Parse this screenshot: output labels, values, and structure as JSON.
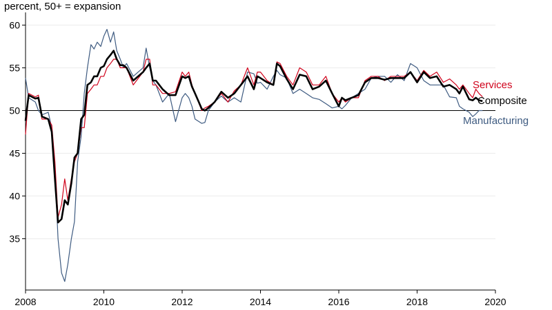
{
  "chart_data": {
    "type": "line",
    "ylabel": "percent, 50+ = expansion",
    "xlim": [
      2008,
      2020
    ],
    "ylim": [
      29,
      61
    ],
    "x_ticks": [
      2008,
      2010,
      2012,
      2014,
      2016,
      2018,
      2020
    ],
    "y_ticks": [
      35,
      40,
      45,
      50,
      55,
      60
    ],
    "reference_line": 50,
    "grid": "horizontal",
    "series": [
      {
        "name": "Services",
        "color": "#d0021b",
        "x": [
          2008.0,
          2008.08,
          2008.25,
          2008.33,
          2008.42,
          2008.58,
          2008.67,
          2008.75,
          2008.83,
          2008.92,
          2009.0,
          2009.08,
          2009.17,
          2009.25,
          2009.33,
          2009.42,
          2009.5,
          2009.58,
          2009.67,
          2009.75,
          2009.83,
          2009.92,
          2010.0,
          2010.08,
          2010.17,
          2010.25,
          2010.33,
          2010.42,
          2010.5,
          2010.58,
          2010.75,
          2011.0,
          2011.08,
          2011.17,
          2011.25,
          2011.33,
          2011.5,
          2011.67,
          2011.83,
          2012.0,
          2012.08,
          2012.17,
          2012.25,
          2012.33,
          2012.5,
          2012.58,
          2012.67,
          2012.83,
          2013.0,
          2013.17,
          2013.33,
          2013.5,
          2013.67,
          2013.83,
          2013.92,
          2014.0,
          2014.17,
          2014.33,
          2014.42,
          2014.5,
          2014.67,
          2014.83,
          2015.0,
          2015.17,
          2015.33,
          2015.5,
          2015.67,
          2015.83,
          2016.0,
          2016.08,
          2016.17,
          2016.33,
          2016.5,
          2016.67,
          2016.83,
          2017.0,
          2017.17,
          2017.33,
          2017.5,
          2017.67,
          2017.83,
          2018.0,
          2018.17,
          2018.33,
          2018.5,
          2018.67,
          2018.83,
          2019.0,
          2019.08,
          2019.17,
          2019.33,
          2019.42,
          2019.5,
          2019.58,
          2019.67
        ],
        "y": [
          47.2,
          52.0,
          51.6,
          51.8,
          49.0,
          49.0,
          48.3,
          44.0,
          37.5,
          39.0,
          42.0,
          39.5,
          42.0,
          44.0,
          45.0,
          48.0,
          48.0,
          52.0,
          52.5,
          53.0,
          53.0,
          54.0,
          54.0,
          55.0,
          55.5,
          56.0,
          56.0,
          55.0,
          55.0,
          55.0,
          53.0,
          54.5,
          56.0,
          56.0,
          53.0,
          53.0,
          52.0,
          52.0,
          52.2,
          54.5,
          54.0,
          54.5,
          53.0,
          52.0,
          50.0,
          50.3,
          50.5,
          51.0,
          52.0,
          51.0,
          52.3,
          53.0,
          55.0,
          53.0,
          54.5,
          54.5,
          53.5,
          53.0,
          55.7,
          55.5,
          54.0,
          53.0,
          55.0,
          54.5,
          53.0,
          53.0,
          54.0,
          52.0,
          51.0,
          51.5,
          51.0,
          51.5,
          51.5,
          53.5,
          54.0,
          54.0,
          53.5,
          54.0,
          54.0,
          54.0,
          54.5,
          53.5,
          54.7,
          54.0,
          54.5,
          53.3,
          53.7,
          53.0,
          52.5,
          53.0,
          52.0,
          51.5,
          52.5,
          52.0,
          51.6
        ]
      },
      {
        "name": "Composite",
        "color": "#000000",
        "x": [
          2008.0,
          2008.08,
          2008.25,
          2008.33,
          2008.42,
          2008.58,
          2008.67,
          2008.75,
          2008.83,
          2008.92,
          2009.0,
          2009.08,
          2009.17,
          2009.25,
          2009.33,
          2009.42,
          2009.5,
          2009.58,
          2009.67,
          2009.75,
          2009.83,
          2009.92,
          2010.0,
          2010.08,
          2010.17,
          2010.25,
          2010.33,
          2010.42,
          2010.5,
          2010.58,
          2010.75,
          2011.0,
          2011.08,
          2011.17,
          2011.25,
          2011.33,
          2011.5,
          2011.67,
          2011.83,
          2012.0,
          2012.08,
          2012.17,
          2012.25,
          2012.33,
          2012.5,
          2012.58,
          2012.67,
          2012.83,
          2013.0,
          2013.17,
          2013.33,
          2013.5,
          2013.67,
          2013.83,
          2013.92,
          2014.0,
          2014.17,
          2014.33,
          2014.42,
          2014.5,
          2014.67,
          2014.83,
          2015.0,
          2015.17,
          2015.33,
          2015.5,
          2015.67,
          2015.83,
          2016.0,
          2016.08,
          2016.17,
          2016.33,
          2016.5,
          2016.67,
          2016.83,
          2017.0,
          2017.17,
          2017.33,
          2017.5,
          2017.67,
          2017.83,
          2018.0,
          2018.17,
          2018.33,
          2018.5,
          2018.67,
          2018.83,
          2019.0,
          2019.08,
          2019.17,
          2019.33,
          2019.42,
          2019.5,
          2019.58,
          2019.67
        ],
        "y": [
          48.8,
          51.8,
          51.4,
          51.5,
          49.3,
          49.0,
          47.5,
          42.0,
          36.9,
          37.3,
          39.5,
          39.0,
          41.5,
          44.5,
          45.0,
          49.0,
          49.5,
          53.0,
          53.3,
          54.0,
          54.0,
          55.0,
          55.2,
          56.0,
          56.5,
          57.0,
          56.0,
          55.3,
          55.3,
          55.0,
          53.5,
          54.5,
          55.0,
          55.5,
          53.5,
          53.5,
          52.5,
          51.8,
          51.8,
          54.0,
          53.8,
          54.0,
          52.8,
          52.0,
          50.2,
          50.0,
          50.3,
          51.0,
          52.2,
          51.5,
          52.0,
          53.0,
          54.0,
          52.5,
          54.0,
          53.8,
          53.3,
          53.0,
          55.5,
          55.2,
          53.7,
          52.5,
          54.2,
          54.0,
          52.5,
          52.8,
          53.5,
          52.0,
          50.5,
          51.5,
          51.2,
          51.5,
          51.8,
          53.3,
          53.8,
          53.8,
          53.6,
          53.8,
          53.8,
          53.8,
          54.5,
          53.3,
          54.5,
          53.8,
          54.0,
          52.8,
          53.0,
          52.5,
          52.0,
          52.8,
          51.3,
          51.2,
          51.5,
          51.2,
          51.1
        ]
      },
      {
        "name": "Manufacturing",
        "color": "#3d5a80",
        "x": [
          2008.0,
          2008.08,
          2008.25,
          2008.33,
          2008.42,
          2008.58,
          2008.67,
          2008.75,
          2008.83,
          2008.92,
          2009.0,
          2009.08,
          2009.17,
          2009.25,
          2009.33,
          2009.42,
          2009.5,
          2009.58,
          2009.67,
          2009.75,
          2009.83,
          2009.92,
          2010.0,
          2010.08,
          2010.17,
          2010.25,
          2010.33,
          2010.42,
          2010.5,
          2010.58,
          2010.75,
          2011.0,
          2011.08,
          2011.17,
          2011.25,
          2011.33,
          2011.5,
          2011.67,
          2011.83,
          2012.0,
          2012.08,
          2012.17,
          2012.25,
          2012.33,
          2012.5,
          2012.58,
          2012.67,
          2012.83,
          2013.0,
          2013.17,
          2013.33,
          2013.5,
          2013.67,
          2013.83,
          2013.92,
          2014.0,
          2014.17,
          2014.33,
          2014.42,
          2014.5,
          2014.67,
          2014.83,
          2015.0,
          2015.17,
          2015.33,
          2015.5,
          2015.67,
          2015.83,
          2016.0,
          2016.08,
          2016.17,
          2016.33,
          2016.5,
          2016.67,
          2016.83,
          2017.0,
          2017.17,
          2017.33,
          2017.5,
          2017.67,
          2017.83,
          2018.0,
          2018.17,
          2018.33,
          2018.5,
          2018.67,
          2018.83,
          2019.0,
          2019.08,
          2019.17,
          2019.33,
          2019.42,
          2019.5,
          2019.58,
          2019.67
        ],
        "y": [
          53.8,
          51.5,
          51.0,
          50.0,
          49.5,
          49.8,
          48.0,
          43.0,
          35.0,
          31.0,
          30.0,
          32.0,
          35.0,
          37.0,
          44.0,
          47.0,
          52.0,
          55.0,
          57.7,
          57.2,
          58.0,
          57.5,
          58.7,
          59.5,
          58.0,
          59.2,
          57.0,
          56.0,
          55.0,
          55.5,
          54.0,
          55.0,
          57.3,
          55.0,
          53.5,
          53.0,
          51.0,
          52.0,
          48.7,
          51.5,
          52.0,
          51.5,
          50.5,
          49.0,
          48.5,
          48.6,
          50.0,
          51.0,
          51.7,
          51.0,
          51.5,
          51.0,
          54.5,
          54.3,
          53.2,
          53.3,
          52.5,
          54.0,
          54.7,
          54.2,
          53.8,
          52.0,
          52.5,
          52.0,
          51.5,
          51.3,
          50.8,
          50.3,
          50.5,
          50.2,
          50.6,
          51.5,
          52.0,
          52.5,
          53.8,
          54.0,
          54.0,
          53.3,
          54.2,
          53.5,
          55.5,
          55.0,
          53.5,
          53.0,
          53.0,
          53.0,
          51.6,
          51.5,
          50.5,
          50.2,
          49.8,
          49.3,
          49.6,
          50.0,
          50.0
        ]
      }
    ]
  }
}
